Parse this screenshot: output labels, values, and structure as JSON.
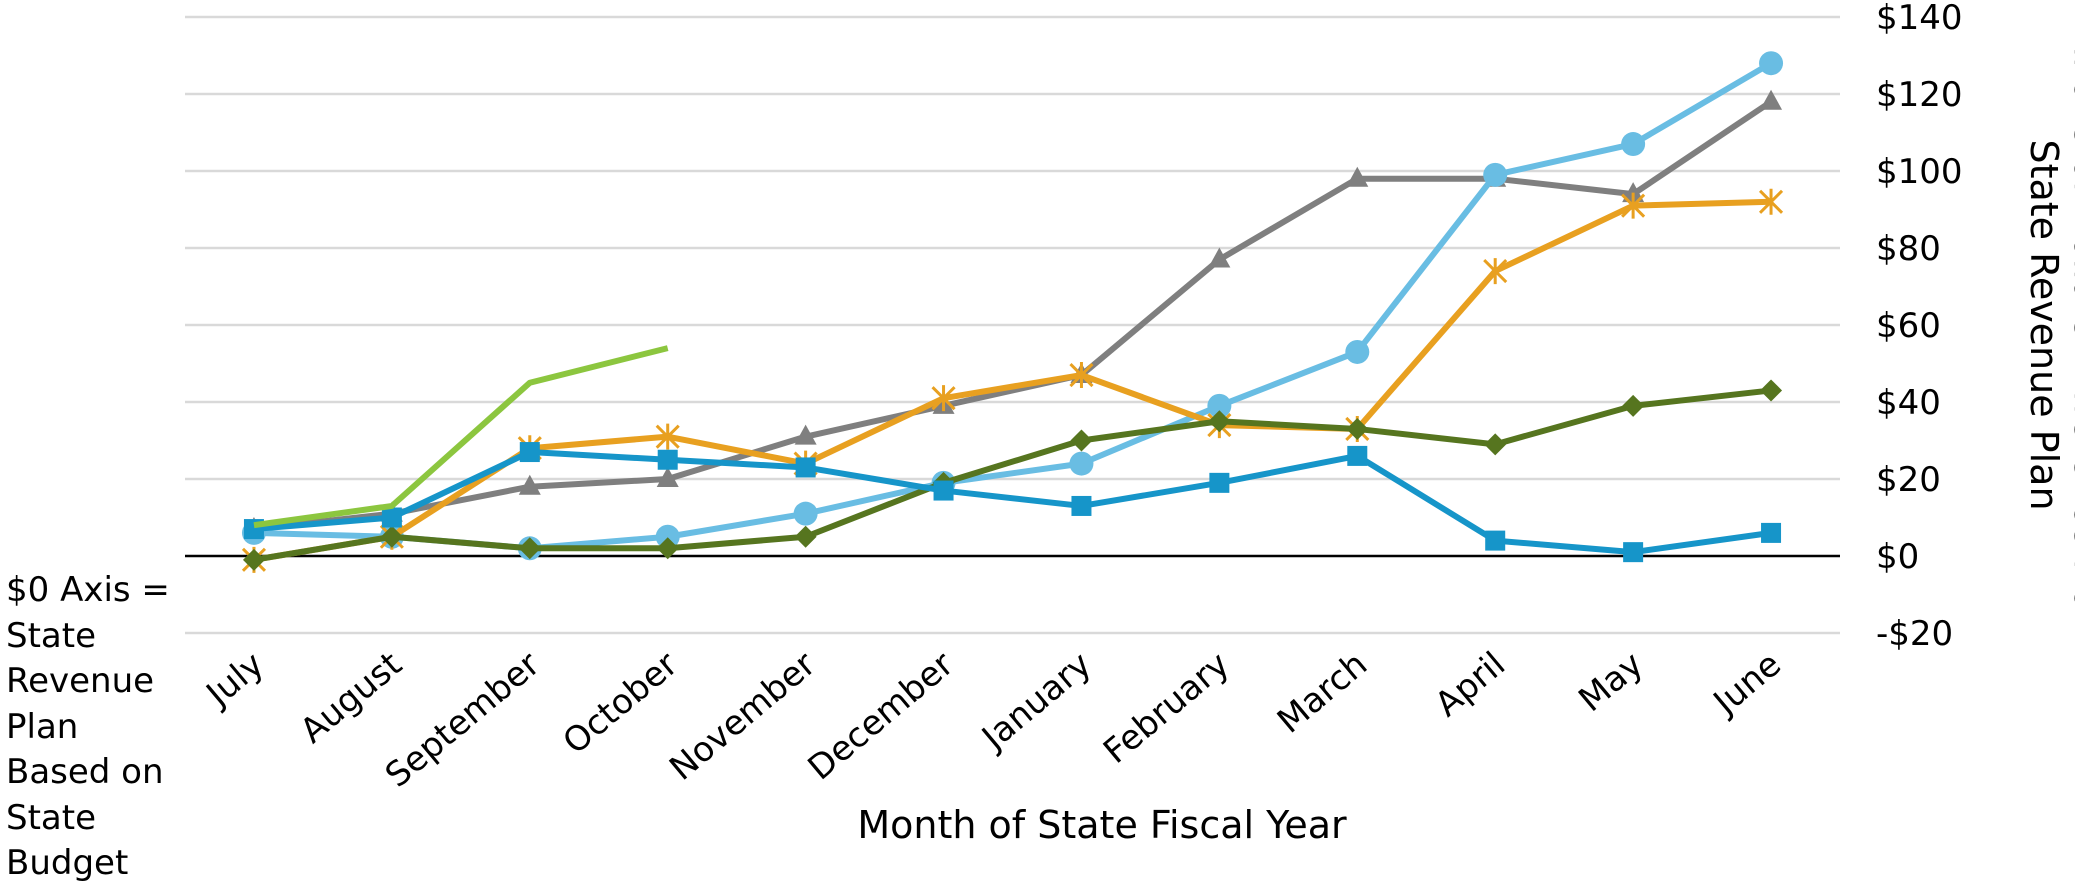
{
  "chart_data": {
    "type": "line",
    "title": "",
    "xlabel": "Month of State Fiscal Year",
    "ylabel": "Millions of Dollars Difference from State Revenue Plan",
    "ylabel_lines": [
      "Millions of Dollars Difference from",
      "State Revenue Plan"
    ],
    "y_axis_side": "right",
    "ylim": [
      -20,
      140
    ],
    "y_ticks": [
      -20,
      0,
      20,
      40,
      60,
      80,
      100,
      120,
      140
    ],
    "y_tick_labels": [
      "-$20",
      "$0",
      "$20",
      "$40",
      "$60",
      "$80",
      "$100",
      "$120",
      "$140"
    ],
    "grid": true,
    "legend": "none",
    "categories": [
      "July",
      "August",
      "September",
      "October",
      "November",
      "December",
      "January",
      "February",
      "March",
      "April",
      "May",
      "June"
    ],
    "series": [
      {
        "color": "#7F7F7F",
        "marker": "triangle",
        "values": [
          7,
          11,
          18,
          20,
          31,
          39,
          47,
          77,
          98,
          98,
          94,
          118
        ]
      },
      {
        "color": "#69BDE3",
        "marker": "circle",
        "values": [
          6,
          5,
          2,
          5,
          11,
          19,
          24,
          39,
          53,
          99,
          107,
          128
        ]
      },
      {
        "color": "#E8A020",
        "marker": "asterisk",
        "values": [
          -1,
          5,
          28,
          31,
          24,
          41,
          47,
          34,
          33,
          74,
          91,
          92
        ]
      },
      {
        "color": "#56751F",
        "marker": "diamond",
        "values": [
          -1,
          5,
          2,
          2,
          5,
          19,
          30,
          35,
          33,
          29,
          39,
          43
        ]
      },
      {
        "color": "#1695C9",
        "marker": "square",
        "values": [
          7,
          10,
          27,
          25,
          23,
          17,
          13,
          19,
          26,
          4,
          1,
          6
        ]
      },
      {
        "color": "#8CC63F",
        "marker": "none",
        "values": [
          8,
          13,
          45,
          54,
          null,
          null,
          null,
          null,
          null,
          null,
          null,
          null
        ]
      }
    ],
    "zero_axis_note": "$0 Axis = State Revenue Plan Based on State Budget"
  },
  "zero_axis_note_lines": [
    "$0 Axis =",
    "State",
    "Revenue",
    "Plan",
    "Based on",
    "State",
    "Budget"
  ]
}
